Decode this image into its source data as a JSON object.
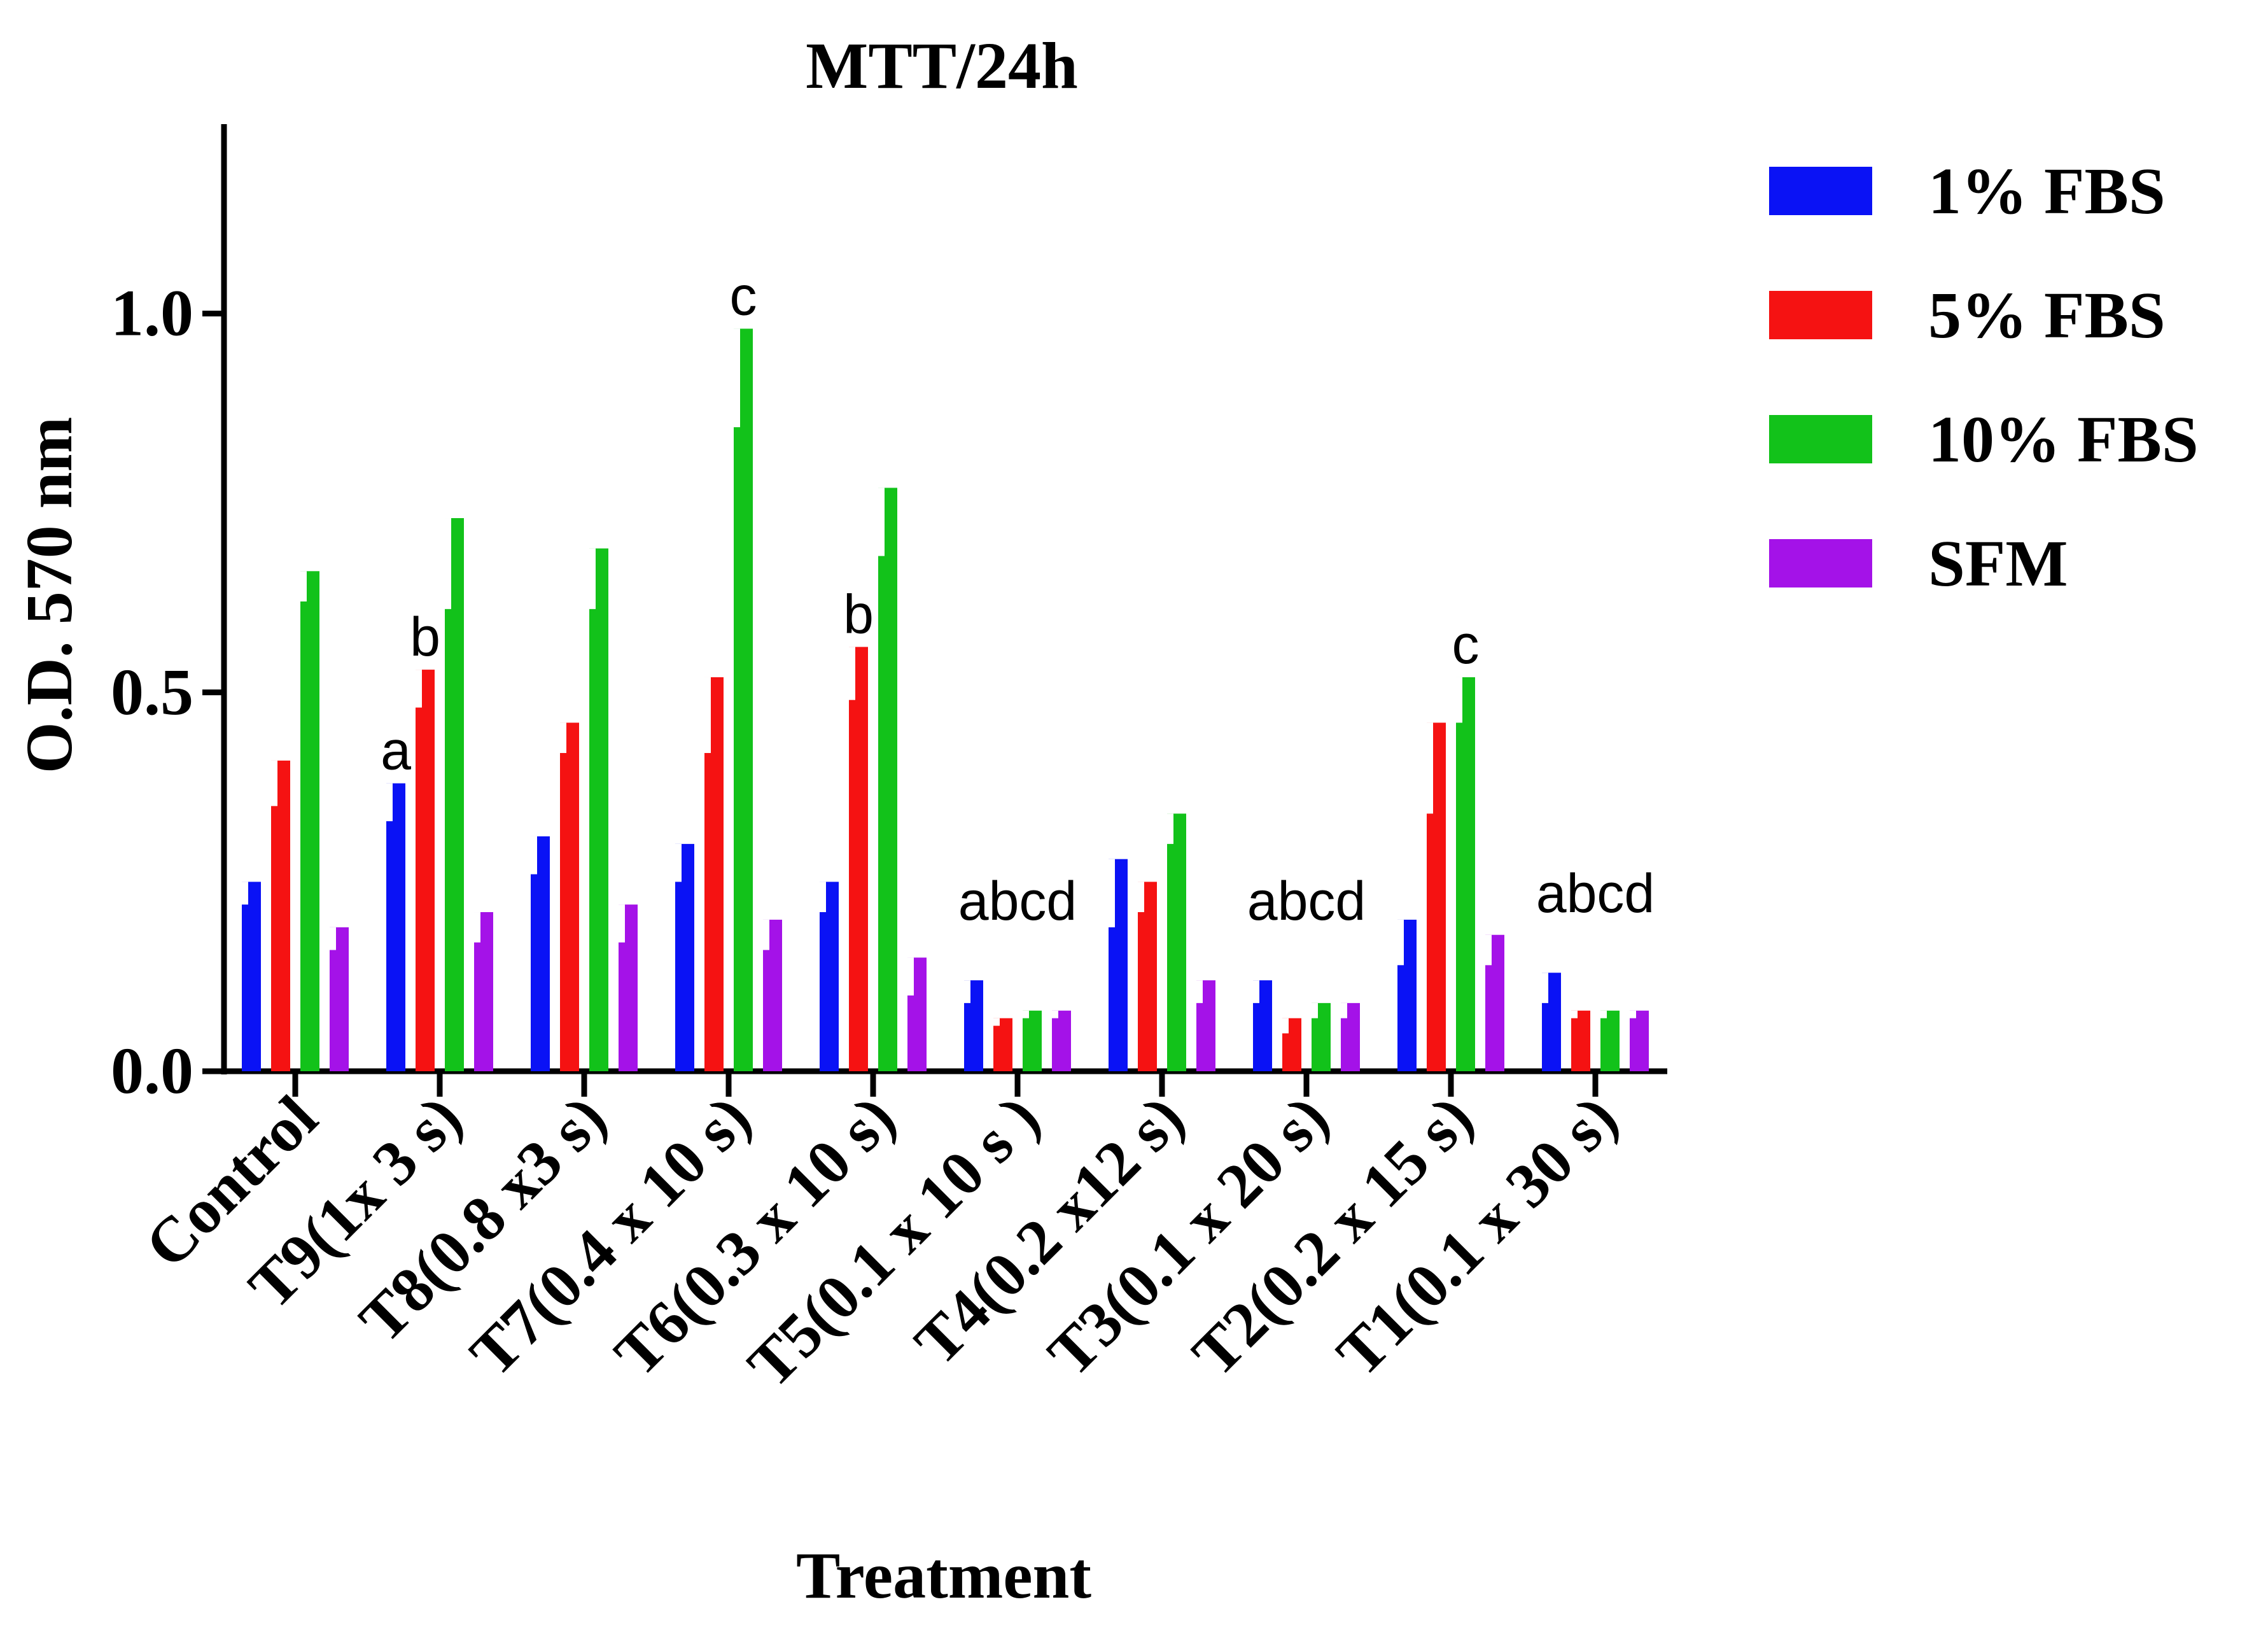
{
  "chart_data": {
    "type": "bar",
    "title": "MTT/24h",
    "xlabel": "Treatment",
    "ylabel": "O.D. 570 nm",
    "ylim": [
      0,
      1.25
    ],
    "yticks": [
      {
        "value": 0.0,
        "label": "0.0"
      },
      {
        "value": 0.5,
        "label": "0.5"
      },
      {
        "value": 1.0,
        "label": "1.0"
      }
    ],
    "grid": false,
    "legend_position": "right",
    "categories": [
      "Control",
      "T9(1x 3 s)",
      "T8(0.8 x3 s)",
      "T7(0.4 x 10 s)",
      "T6(0.3 x 10 s)",
      "T5(0.1 x 10 s )",
      "T4(0.2 x12 s)",
      "T3(0.1 x 20 s)",
      "T2(0.2 x 15 s)",
      "T1(0.1 x 30 s)"
    ],
    "series": [
      {
        "name": "1% FBS",
        "color": "#0a12f5",
        "values": [
          0.25,
          0.38,
          0.31,
          0.3,
          0.25,
          0.12,
          0.28,
          0.12,
          0.2,
          0.13
        ],
        "lower": [
          0.22,
          0.33,
          0.26,
          0.25,
          0.21,
          0.09,
          0.19,
          0.09,
          0.14,
          0.09
        ]
      },
      {
        "name": "5% FBS",
        "color": "#f51212",
        "values": [
          0.41,
          0.53,
          0.46,
          0.52,
          0.56,
          0.07,
          0.25,
          0.07,
          0.46,
          0.08
        ],
        "lower": [
          0.35,
          0.48,
          0.42,
          0.42,
          0.49,
          0.06,
          0.21,
          0.05,
          0.34,
          0.07
        ]
      },
      {
        "name": "10% FBS",
        "color": "#12c21a",
        "values": [
          0.66,
          0.73,
          0.69,
          0.98,
          0.77,
          0.08,
          0.34,
          0.09,
          0.52,
          0.08
        ],
        "lower": [
          0.62,
          0.61,
          0.61,
          0.85,
          0.68,
          0.07,
          0.3,
          0.07,
          0.46,
          0.07
        ]
      },
      {
        "name": "SFM",
        "color": "#a412e8",
        "values": [
          0.19,
          0.21,
          0.22,
          0.2,
          0.15,
          0.08,
          0.12,
          0.09,
          0.18,
          0.08
        ],
        "lower": [
          0.16,
          0.17,
          0.17,
          0.16,
          0.1,
          0.07,
          0.09,
          0.07,
          0.14,
          0.07
        ]
      }
    ],
    "annotations": [
      {
        "category": 1,
        "series": 0,
        "text": "a"
      },
      {
        "category": 1,
        "series": 1,
        "text": "b"
      },
      {
        "category": 3,
        "series": 2,
        "text": "c"
      },
      {
        "category": 4,
        "series": 1,
        "text": "b"
      },
      {
        "category": 5,
        "series": null,
        "text": "abcd"
      },
      {
        "category": 7,
        "series": null,
        "text": "abcd"
      },
      {
        "category": 8,
        "series": 2,
        "text": "c"
      },
      {
        "category": 9,
        "series": null,
        "text": "abcd"
      }
    ]
  }
}
